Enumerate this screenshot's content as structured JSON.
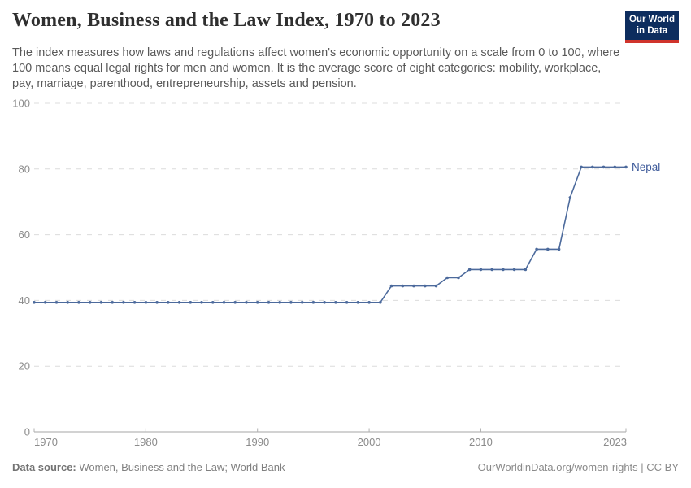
{
  "header": {
    "title": "Women, Business and the Law Index, 1970 to 2023",
    "subtitle": "The index measures how laws and regulations affect women's economic opportunity on a scale from 0 to 100, where 100 means equal legal rights for men and women. It is the average score of eight categories: mobility, workplace, pay, marriage, parenthood, entrepreneurship, assets and pension.",
    "logo": {
      "line1": "Our World",
      "line2": "in Data",
      "bg_color": "#0d2d5e",
      "accent_color": "#d0342c"
    }
  },
  "chart_data": {
    "type": "line",
    "title": "Women, Business and the Law Index, 1970 to 2023",
    "xlabel": "",
    "ylabel": "",
    "xlim": [
      1970,
      2023
    ],
    "ylim": [
      0,
      100
    ],
    "x_ticks": [
      1970,
      1980,
      1990,
      2000,
      2010,
      2023
    ],
    "y_ticks": [
      0,
      20,
      40,
      60,
      80,
      100
    ],
    "grid": "horizontal-dashed",
    "markers": true,
    "legend_position": "end-of-line-label",
    "series": [
      {
        "name": "Nepal",
        "color": "#4c6a9c",
        "label_color": "#3d5a9a",
        "x": [
          1970,
          1971,
          1972,
          1973,
          1974,
          1975,
          1976,
          1977,
          1978,
          1979,
          1980,
          1981,
          1982,
          1983,
          1984,
          1985,
          1986,
          1987,
          1988,
          1989,
          1990,
          1991,
          1992,
          1993,
          1994,
          1995,
          1996,
          1997,
          1998,
          1999,
          2000,
          2001,
          2002,
          2003,
          2004,
          2005,
          2006,
          2007,
          2008,
          2009,
          2010,
          2011,
          2012,
          2013,
          2014,
          2015,
          2016,
          2017,
          2018,
          2019,
          2020,
          2021,
          2022,
          2023
        ],
        "values": [
          39.4,
          39.4,
          39.4,
          39.4,
          39.4,
          39.4,
          39.4,
          39.4,
          39.4,
          39.4,
          39.4,
          39.4,
          39.4,
          39.4,
          39.4,
          39.4,
          39.4,
          39.4,
          39.4,
          39.4,
          39.4,
          39.4,
          39.4,
          39.4,
          39.4,
          39.4,
          39.4,
          39.4,
          39.4,
          39.4,
          39.4,
          39.4,
          44.4,
          44.4,
          44.4,
          44.4,
          44.4,
          46.9,
          46.9,
          49.4,
          49.4,
          49.4,
          49.4,
          49.4,
          49.4,
          55.6,
          55.6,
          55.6,
          71.3,
          80.6,
          80.6,
          80.6,
          80.6,
          80.6
        ]
      }
    ]
  },
  "footer": {
    "source_label": "Data source:",
    "source_value": " Women, Business and the Law; World Bank",
    "credit": "OurWorldinData.org/women-rights | CC BY"
  }
}
